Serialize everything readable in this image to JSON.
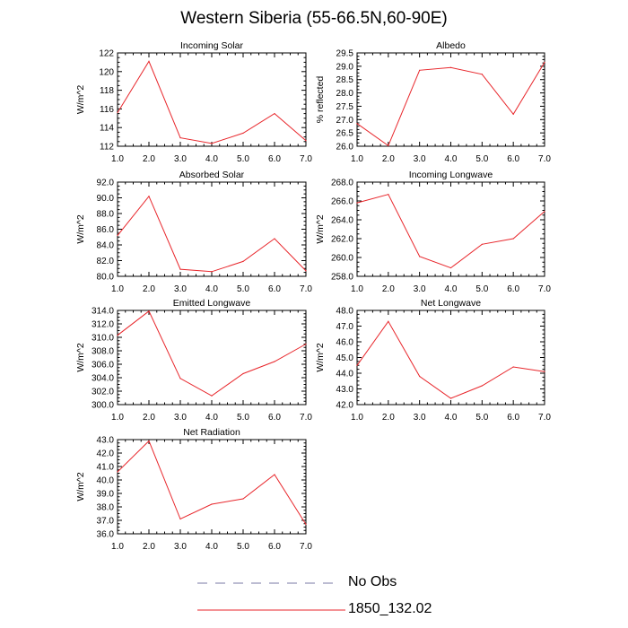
{
  "title": "Western Siberia (55-66.5N,60-90E)",
  "legend": {
    "entries": [
      {
        "label": "No Obs",
        "style": "dashed",
        "color": "#7a7aa6"
      },
      {
        "label": "1850_132.02",
        "style": "solid",
        "color": "#e8262b"
      }
    ]
  },
  "chart_data": [
    {
      "type": "line",
      "title": "Incoming Solar",
      "ylabel": "W/m^2",
      "x": [
        1,
        2,
        3,
        4,
        5,
        6,
        7
      ],
      "xticks": [
        "1.0",
        "2.0",
        "3.0",
        "4.0",
        "5.0",
        "6.0",
        "7.0"
      ],
      "xlim": [
        1,
        7
      ],
      "ylim": [
        112,
        122
      ],
      "yticks": [
        "112",
        "114",
        "116",
        "118",
        "120",
        "122"
      ],
      "series": [
        {
          "values": [
            115.6,
            121.1,
            112.9,
            112.3,
            113.4,
            115.5,
            112.6
          ],
          "color": "#e8262b"
        }
      ]
    },
    {
      "type": "line",
      "title": "Albedo",
      "ylabel": "% reflected",
      "x": [
        1,
        2,
        3,
        4,
        5,
        6,
        7
      ],
      "xticks": [
        "1.0",
        "2.0",
        "3.0",
        "4.0",
        "5.0",
        "6.0",
        "7.0"
      ],
      "xlim": [
        1,
        7
      ],
      "ylim": [
        26,
        29.5
      ],
      "yticks": [
        "26.0",
        "26.5",
        "27.0",
        "27.5",
        "28.0",
        "28.5",
        "29.0",
        "29.5"
      ],
      "series": [
        {
          "values": [
            26.85,
            26.02,
            28.85,
            28.95,
            28.7,
            27.2,
            29.15
          ],
          "color": "#e8262b"
        }
      ]
    },
    {
      "type": "line",
      "title": "Absorbed Solar",
      "ylabel": "W/m^2",
      "x": [
        1,
        2,
        3,
        4,
        5,
        6,
        7
      ],
      "xticks": [
        "1.0",
        "2.0",
        "3.0",
        "4.0",
        "5.0",
        "6.0",
        "7.0"
      ],
      "xlim": [
        1,
        7
      ],
      "ylim": [
        80,
        92
      ],
      "yticks": [
        "80.0",
        "82.0",
        "84.0",
        "86.0",
        "88.0",
        "90.0",
        "92.0"
      ],
      "series": [
        {
          "values": [
            85.2,
            90.2,
            80.9,
            80.6,
            81.9,
            84.8,
            80.7
          ],
          "color": "#e8262b"
        }
      ]
    },
    {
      "type": "line",
      "title": "Incoming Longwave",
      "ylabel": "W/m^2",
      "x": [
        1,
        2,
        3,
        4,
        5,
        6,
        7
      ],
      "xticks": [
        "1.0",
        "2.0",
        "3.0",
        "4.0",
        "5.0",
        "6.0",
        "7.0"
      ],
      "xlim": [
        1,
        7
      ],
      "ylim": [
        258,
        268
      ],
      "yticks": [
        "258.0",
        "260.0",
        "262.0",
        "264.0",
        "266.0",
        "268.0"
      ],
      "series": [
        {
          "values": [
            265.8,
            266.7,
            260.1,
            258.9,
            261.4,
            262.0,
            264.9
          ],
          "color": "#e8262b"
        }
      ]
    },
    {
      "type": "line",
      "title": "Emitted Longwave",
      "ylabel": "W/m^2",
      "x": [
        1,
        2,
        3,
        4,
        5,
        6,
        7
      ],
      "xticks": [
        "1.0",
        "2.0",
        "3.0",
        "4.0",
        "5.0",
        "6.0",
        "7.0"
      ],
      "xlim": [
        1,
        7
      ],
      "ylim": [
        300,
        314
      ],
      "yticks": [
        "300.0",
        "302.0",
        "304.0",
        "306.0",
        "308.0",
        "310.0",
        "312.0",
        "314.0"
      ],
      "series": [
        {
          "values": [
            310.3,
            313.9,
            303.9,
            301.3,
            304.6,
            306.4,
            309.0
          ],
          "color": "#e8262b"
        }
      ]
    },
    {
      "type": "line",
      "title": "Net Longwave",
      "ylabel": "W/m^2",
      "x": [
        1,
        2,
        3,
        4,
        5,
        6,
        7
      ],
      "xticks": [
        "1.0",
        "2.0",
        "3.0",
        "4.0",
        "5.0",
        "6.0",
        "7.0"
      ],
      "xlim": [
        1,
        7
      ],
      "ylim": [
        42,
        48
      ],
      "yticks": [
        "42.0",
        "43.0",
        "44.0",
        "45.0",
        "46.0",
        "47.0",
        "48.0"
      ],
      "series": [
        {
          "values": [
            44.5,
            47.3,
            43.8,
            42.4,
            43.2,
            44.4,
            44.1
          ],
          "color": "#e8262b"
        }
      ]
    },
    {
      "type": "line",
      "title": "Net Radiation",
      "ylabel": "W/m^2",
      "x": [
        1,
        2,
        3,
        4,
        5,
        6,
        7
      ],
      "xticks": [
        "1.0",
        "2.0",
        "3.0",
        "4.0",
        "5.0",
        "6.0",
        "7.0"
      ],
      "xlim": [
        1,
        7
      ],
      "ylim": [
        36,
        43
      ],
      "yticks": [
        "36.0",
        "37.0",
        "38.0",
        "39.0",
        "40.0",
        "41.0",
        "42.0",
        "43.0"
      ],
      "series": [
        {
          "values": [
            40.6,
            42.9,
            37.1,
            38.2,
            38.6,
            40.4,
            36.7
          ],
          "color": "#e8262b"
        }
      ]
    }
  ]
}
